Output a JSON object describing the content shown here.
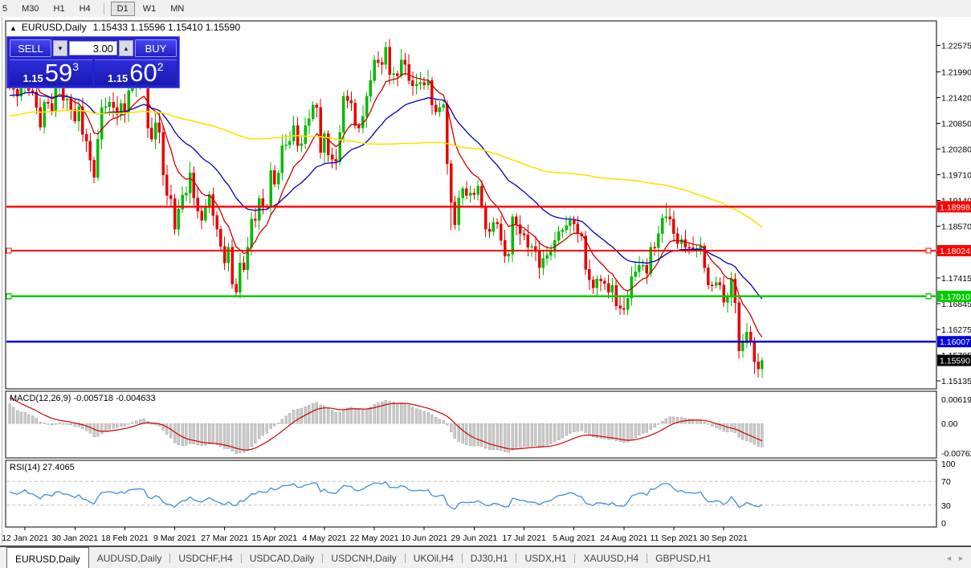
{
  "toolbar": {
    "timeframes": [
      "5",
      "M30",
      "H1",
      "H4",
      "D1",
      "W1",
      "MN"
    ],
    "active": "D1",
    "separator_before": "D1"
  },
  "chart_header": {
    "collapse_icon": "▲",
    "symbol": "EURUSD,Daily",
    "quotes": "1.15433 1.15596 1.15410 1.15590"
  },
  "trade_panel": {
    "sell_label": "SELL",
    "buy_label": "BUY",
    "volume": "3.00",
    "spin_down_icon": "▼",
    "spin_up_icon": "▲",
    "bid": {
      "small": "1.15",
      "big": "59",
      "sup": "3"
    },
    "ask": {
      "small": "1.15",
      "big": "60",
      "sup": "2"
    }
  },
  "chart_data": {
    "type": "candlestick",
    "symbol": "EURUSD",
    "timeframe": "Daily",
    "y_axis": {
      "min": 1.1496,
      "max": 1.2312,
      "ticks": [
        "1.22575",
        "1.21990",
        "1.21420",
        "1.20850",
        "1.20280",
        "1.19710",
        "1.19140",
        "1.18570",
        "1.17985",
        "1.17415",
        "1.16845",
        "1.16275",
        "1.15705",
        "1.15135"
      ]
    },
    "x_axis": {
      "labels": [
        "12 Jan 2021",
        "30 Jan 2021",
        "18 Feb 2021",
        "9 Mar 2021",
        "27 Mar 2021",
        "15 Apr 2021",
        "4 May 2021",
        "22 May 2021",
        "10 Jun 2021",
        "29 Jun 2021",
        "17 Jul 2021",
        "5 Aug 2021",
        "24 Aug 2021",
        "11 Sep 2021",
        "30 Sep 2021"
      ],
      "first_label_bar": 4,
      "bars_per_label": 13
    },
    "render_from": 36,
    "closes": [
      1.184,
      1.1862,
      1.1855,
      1.188,
      1.192,
      1.1893,
      1.192,
      1.1925,
      1.191,
      1.1962,
      1.201,
      1.1963,
      1.2115,
      1.2165,
      1.211,
      1.208,
      1.211,
      1.216,
      1.2155,
      1.212,
      1.2155,
      1.219,
      1.2245,
      1.219,
      1.225,
      1.218,
      1.2215,
      1.2265,
      1.225,
      1.2285,
      1.2248,
      1.2215,
      1.225,
      1.224,
      1.2225,
      1.2195,
      1.218,
      1.216,
      1.2145,
      1.217,
      1.2208,
      1.2157,
      1.2155,
      1.212,
      1.2076,
      1.2132,
      1.2129,
      1.211,
      1.2167,
      1.217,
      1.2136,
      1.2139,
      1.2116,
      1.209,
      1.2122,
      1.206,
      1.2045,
      1.2003,
      1.1965,
      1.205,
      1.212,
      1.2122,
      1.2132,
      1.212,
      1.2105,
      1.2129,
      1.211,
      1.2157,
      1.2165,
      1.217,
      1.2175,
      1.2168,
      1.2075,
      1.205,
      1.2086,
      1.2065,
      1.197,
      1.1925,
      1.1918,
      1.185,
      1.1895,
      1.1926,
      1.193,
      1.1975,
      1.192,
      1.189,
      1.187,
      1.19,
      1.1927,
      1.188,
      1.185,
      1.1812,
      1.1775,
      1.181,
      1.1728,
      1.171,
      1.1775,
      1.176,
      1.181,
      1.1872,
      1.187,
      1.1918,
      1.19,
      1.1899,
      1.198,
      1.195,
      1.1975,
      1.2035,
      1.2037,
      1.2045,
      1.208,
      1.2035,
      1.204,
      1.208,
      1.2095,
      1.2125,
      1.212,
      1.202,
      1.2062,
      1.2015,
      1.2005,
      1.2,
      1.2065,
      1.2145,
      1.2135,
      1.213,
      1.208,
      1.2075,
      1.21,
      1.2145,
      1.218,
      1.2225,
      1.222,
      1.2215,
      1.2254,
      1.2193,
      1.2195,
      1.219,
      1.2225,
      1.2215,
      1.218,
      1.2168,
      1.2172,
      1.2175,
      1.217,
      1.218,
      1.2125,
      1.211,
      1.212,
      1.2126,
      1.1995,
      1.191,
      1.186,
      1.192,
      1.194,
      1.1925,
      1.193,
      1.1927,
      1.1945,
      1.19,
      1.185,
      1.1845,
      1.1865,
      1.1862,
      1.1825,
      1.179,
      1.1795,
      1.1878,
      1.186,
      1.184,
      1.1838,
      1.181,
      1.1812,
      1.18,
      1.1765,
      1.1785,
      1.1792,
      1.18,
      1.1825,
      1.1845,
      1.1848,
      1.1858,
      1.187,
      1.1862,
      1.184,
      1.1835,
      1.1761,
      1.1738,
      1.172,
      1.174,
      1.1735,
      1.173,
      1.171,
      1.1725,
      1.168,
      1.1675,
      1.1672,
      1.1697,
      1.1745,
      1.1756,
      1.177,
      1.177,
      1.1752,
      1.181,
      1.1809,
      1.184,
      1.1875,
      1.1878,
      1.1872,
      1.184,
      1.1818,
      1.1827,
      1.181,
      1.1809,
      1.1805,
      1.1807,
      1.1813,
      1.1765,
      1.1726,
      1.1725,
      1.1732,
      1.1726,
      1.1688,
      1.1703,
      1.174,
      1.1687,
      1.158,
      1.1598,
      1.1622,
      1.1599,
      1.1556,
      1.154,
      1.1559
    ],
    "wick_overrides": {
      "58": {
        "l": 1.1952
      },
      "71": {
        "h": 1.2243
      },
      "95": {
        "l": 1.1704
      },
      "134": {
        "h": 1.2266
      },
      "151": {
        "l": 1.1848
      },
      "207": {
        "h": 1.1909
      },
      "226": {
        "l": 1.1563
      },
      "230": {
        "l": 1.1529
      }
    },
    "colors": {
      "bull": "#00BB00",
      "bear": "#E60000",
      "ma_fast": "#CC0000",
      "ma_mid": "#0000BB",
      "ma_slow": "#FFE200",
      "macd_hist": "#C9C9C9",
      "macd_signal": "#D00000",
      "rsi": "#3E8EDE"
    },
    "moving_averages": [
      {
        "type": "ema",
        "period": 10,
        "color_key": "ma_fast"
      },
      {
        "type": "ema",
        "period": 30,
        "color_key": "ma_mid"
      },
      {
        "type": "sma",
        "period": 100,
        "color_key": "ma_slow"
      }
    ],
    "hlines": [
      {
        "value": 1.18998,
        "label": "1.18998",
        "color": "#FF0000",
        "text_color": "#FFFFFF",
        "anchors": false
      },
      {
        "value": 1.18024,
        "label": "1.18024",
        "color": "#FF0000",
        "text_color": "#FFFFFF",
        "anchors": true
      },
      {
        "value": 1.1701,
        "label": "1.17010",
        "color": "#00CC00",
        "text_color": "#FFFFFF",
        "anchors": true
      },
      {
        "value": 1.16007,
        "label": "1.16007",
        "color": "#0000E0",
        "text_color": "#FFFFFF",
        "anchors": false
      }
    ],
    "current_price": {
      "value": 1.1559,
      "label": "1.15590",
      "box_color": "#000000",
      "text_color": "#FFFFFF"
    },
    "macd": {
      "label": "MACD(12,26,9) -0.005718 -0.004633",
      "fast": 12,
      "slow": 26,
      "signal": 9,
      "axis": [
        {
          "v": 0.006193,
          "t": "0.006193"
        },
        {
          "v": 0,
          "t": "0.00"
        },
        {
          "v": -0.00762,
          "t": "-0.00762"
        }
      ]
    },
    "rsi": {
      "label": "RSI(14) 27.4065",
      "period": 14,
      "levels": [
        {
          "v": 100,
          "t": "100",
          "dashed": false
        },
        {
          "v": 70,
          "t": "70",
          "dashed": true
        },
        {
          "v": 30,
          "t": "30",
          "dashed": true
        },
        {
          "v": 0,
          "t": "0",
          "dashed": false
        }
      ]
    }
  },
  "tabs": {
    "items": [
      {
        "label": "EURUSD,Daily",
        "active": true
      },
      {
        "label": "AUDUSD,Daily",
        "active": false
      },
      {
        "label": "USDCHF,H4",
        "active": false
      },
      {
        "label": "USDCAD,Daily",
        "active": false
      },
      {
        "label": "USDCNH,Daily",
        "active": false
      },
      {
        "label": "UKOil,H4",
        "active": false
      },
      {
        "label": "DJ30,H1",
        "active": false
      },
      {
        "label": "USDX,H1",
        "active": false
      },
      {
        "label": "XAUUSD,H4",
        "active": false
      },
      {
        "label": "GBPUSD,H1",
        "active": false
      }
    ],
    "scroll_left_icon": "◂",
    "scroll_right_icon": "▸"
  }
}
